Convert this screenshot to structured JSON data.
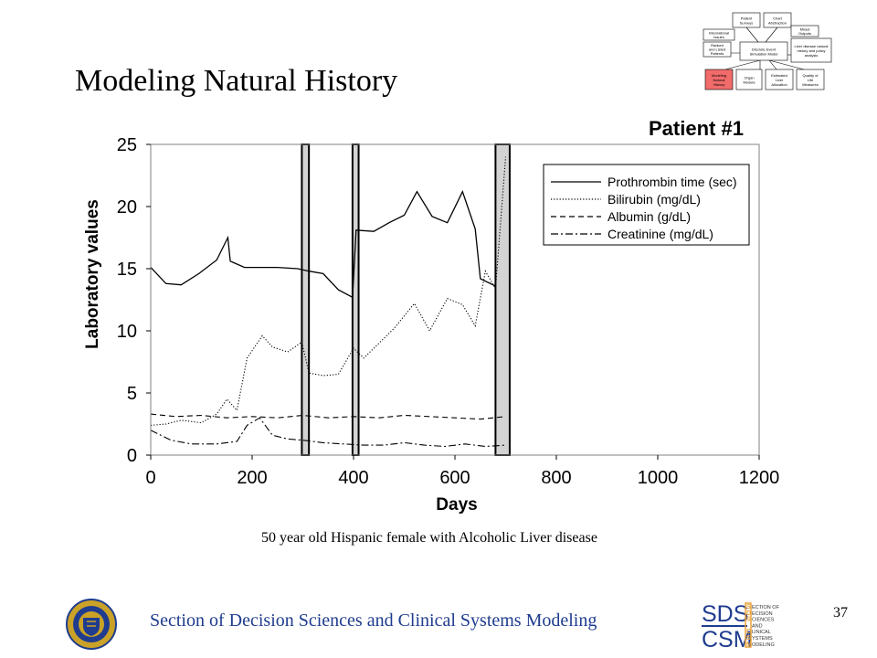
{
  "slide": {
    "title": "Modeling Natural History",
    "caption": "50 year old Hispanic female with Alcoholic Liver disease",
    "footer": "Section of Decision Sciences and Clinical Systems Modeling",
    "page_number": "37",
    "logo_sds": "SDS",
    "logo_csm": "CSM",
    "logo_words": [
      "ECTION OF",
      "ECISION",
      "CIENCES",
      "AND",
      "LINICAL",
      "YSTEMS",
      "ODELING"
    ],
    "logo_initials": [
      "S",
      "D",
      "S",
      "",
      "C",
      "S",
      "M"
    ]
  },
  "colors": {
    "footer_text": "#1f3c8f",
    "highlight_box": "#f26b6b",
    "shaded_band": "#d3d3d3"
  },
  "chart_data": {
    "type": "line",
    "title": "Patient #1",
    "xlabel": "Days",
    "ylabel": "Laboratory values",
    "xlim": [
      0,
      1200
    ],
    "ylim": [
      0,
      25
    ],
    "xticks": [
      0,
      200,
      400,
      600,
      800,
      1000,
      1200
    ],
    "yticks": [
      0,
      5,
      10,
      15,
      20,
      25
    ],
    "legend_position": "top-right",
    "shaded_intervals": [
      [
        298,
        312
      ],
      [
        398,
        410
      ],
      [
        680,
        708
      ]
    ],
    "series": [
      {
        "name": "Prothrombin time (sec)",
        "style": "solid",
        "x": [
          0,
          30,
          60,
          95,
          130,
          152,
          157,
          185,
          220,
          250,
          290,
          312,
          340,
          370,
          398,
          405,
          440,
          470,
          500,
          525,
          555,
          585,
          615,
          640,
          650,
          680
        ],
        "y": [
          15.1,
          13.8,
          13.7,
          14.6,
          15.7,
          17.5,
          15.6,
          15.1,
          15.1,
          15.1,
          15.0,
          14.8,
          14.6,
          13.3,
          12.7,
          18.1,
          18.0,
          18.7,
          19.3,
          21.2,
          19.2,
          18.7,
          21.2,
          18.2,
          14.2,
          13.6
        ]
      },
      {
        "name": "Bilirubin (mg/dL)",
        "style": "dotted",
        "x": [
          0,
          30,
          60,
          100,
          130,
          150,
          170,
          190,
          220,
          240,
          270,
          298,
          312,
          340,
          370,
          400,
          420,
          450,
          480,
          520,
          550,
          585,
          615,
          640,
          660,
          680,
          700
        ],
        "y": [
          2.4,
          2.5,
          2.8,
          2.6,
          3.3,
          4.5,
          3.6,
          7.8,
          9.6,
          8.7,
          8.3,
          9.1,
          6.6,
          6.4,
          6.5,
          8.6,
          7.8,
          9.0,
          10.2,
          12.2,
          10.0,
          12.6,
          12.1,
          10.4,
          14.8,
          13.4,
          24.0
        ]
      },
      {
        "name": "Albumin (g/dL)",
        "style": "dashed",
        "x": [
          0,
          50,
          100,
          150,
          200,
          250,
          300,
          350,
          400,
          450,
          500,
          550,
          600,
          650,
          700
        ],
        "y": [
          3.3,
          3.1,
          3.2,
          3.0,
          3.1,
          3.0,
          3.2,
          3.0,
          3.1,
          3.0,
          3.2,
          3.1,
          3.0,
          2.9,
          3.1
        ]
      },
      {
        "name": "Creatinine (mg/dL)",
        "style": "dashdot",
        "x": [
          0,
          40,
          80,
          130,
          170,
          190,
          215,
          240,
          270,
          300,
          340,
          380,
          420,
          460,
          500,
          540,
          580,
          620,
          660,
          700
        ],
        "y": [
          2.0,
          1.2,
          0.9,
          0.9,
          1.1,
          2.4,
          3.0,
          1.6,
          1.3,
          1.2,
          1.0,
          0.9,
          0.8,
          0.8,
          1.0,
          0.8,
          0.7,
          0.9,
          0.7,
          0.8
        ]
      }
    ]
  },
  "flowchart": {
    "boxes": [
      {
        "id": "b1",
        "lines": [
          "Patient",
          "Surveys"
        ]
      },
      {
        "id": "b2",
        "lines": [
          "Chart",
          "Abstraction"
        ]
      },
      {
        "id": "b3",
        "lines": [
          "International",
          "Issues"
        ]
      },
      {
        "id": "b4",
        "lines": [
          "Mixed",
          "Outputs"
        ]
      },
      {
        "id": "b5",
        "lines": [
          "Ranked",
          "and Listed",
          "Patients"
        ]
      },
      {
        "id": "b6",
        "lines": [
          "Discrete Event",
          "Simulation Model"
        ]
      },
      {
        "id": "b7",
        "lines": [
          "Liver disease natural",
          "history and policy",
          "analysis"
        ]
      },
      {
        "id": "b8",
        "lines": [
          "Modeling",
          "Natural",
          "History"
        ],
        "highlight": true
      },
      {
        "id": "b9",
        "lines": [
          "Organ",
          "Models"
        ]
      },
      {
        "id": "b10",
        "lines": [
          "Estimated",
          "Liver",
          "Allocation"
        ]
      },
      {
        "id": "b11",
        "lines": [
          "Quality of",
          "Life",
          "Measures"
        ]
      }
    ]
  }
}
